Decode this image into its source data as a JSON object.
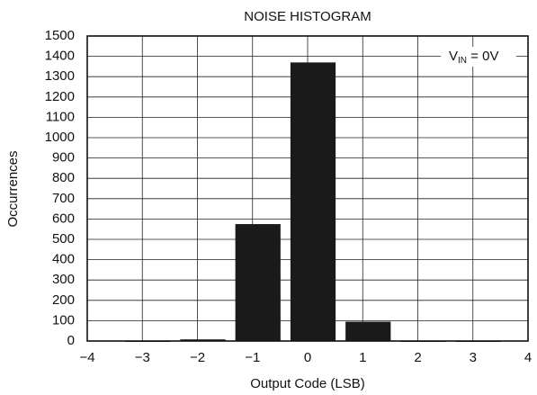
{
  "chart_data": {
    "type": "bar",
    "title": "NOISE HISTOGRAM",
    "x_label": "Output Code (LSB)",
    "y_label": "Occurrences",
    "x": [
      -3,
      -2,
      -1,
      0,
      1,
      2,
      3
    ],
    "values": [
      1,
      8,
      575,
      1370,
      95,
      1,
      1
    ],
    "color": "#1a1a1a",
    "xlim": [
      -4,
      4
    ],
    "xticks": [
      {
        "value": -4,
        "label": "−4"
      },
      {
        "value": -3,
        "label": "−3"
      },
      {
        "value": -2,
        "label": "−2"
      },
      {
        "value": -1,
        "label": "−1"
      },
      0,
      1,
      2,
      3,
      4
    ],
    "ylim": [
      0,
      1500
    ],
    "yticks": [
      0,
      100,
      200,
      300,
      400,
      500,
      600,
      700,
      800,
      900,
      1000,
      1100,
      1200,
      1300,
      1400,
      1500
    ],
    "grid": true,
    "annotation": {
      "text": "V",
      "subscript": "IN",
      "suffix": " = 0V"
    }
  }
}
